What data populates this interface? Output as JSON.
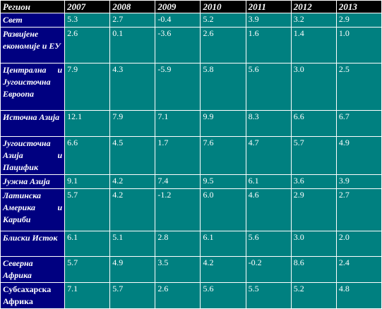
{
  "table": {
    "region_header": "Регион",
    "years": [
      "2007",
      "2008",
      "2009",
      "2010",
      "2011",
      "2012",
      "2013"
    ],
    "rows": [
      {
        "region": "Свет",
        "values": [
          "5.3",
          "2.7",
          "-0.4",
          "5.2",
          "3.9",
          "3.2",
          "2.9"
        ]
      },
      {
        "region": "Развијене економије и ЕУ",
        "values": [
          "2.6",
          "0.1",
          "-3.6",
          "2.6",
          "1.6",
          "1.4",
          "1.0"
        ]
      },
      {
        "region": "Централна и Југоисточна Евроопа",
        "values": [
          "7.9",
          "4.3",
          "-5.9",
          "5.8",
          "5.6",
          "3.0",
          "2.5"
        ]
      },
      {
        "region": "Источна Азија",
        "values": [
          "12.1",
          "7.9",
          "7.1",
          "9.9",
          "8.3",
          "6.6",
          "6.7"
        ]
      },
      {
        "region": "Југоисточна Азија и Пацифик",
        "values": [
          "6.6",
          "4.5",
          "1.7",
          "7.6",
          "4.7",
          "5.7",
          "4.9"
        ]
      },
      {
        "region": "Јужна Азија",
        "values": [
          "9.1",
          "4.2",
          "7.4",
          "9.5",
          "6.1",
          "3.6",
          "3.9"
        ]
      },
      {
        "region": "Латинска Америка и Кариби",
        "values": [
          "5.7",
          "4.2",
          "-1.2",
          "6.0",
          "4.6",
          "2.9",
          "2.7"
        ]
      },
      {
        "region": "Блиски Исток",
        "values": [
          "6.1",
          "5.1",
          "2.8",
          "6.1",
          "5.6",
          "3.0",
          "2.0"
        ]
      },
      {
        "region": "Северна Африка",
        "values": [
          "5.7",
          "4.9",
          "3.5",
          "4.2",
          "-0.2",
          "8.6",
          "2.4"
        ]
      },
      {
        "region": "Субсахарска Африка",
        "values": [
          "7.1",
          "5.7",
          "2.6",
          "5.6",
          "5.5",
          "5.2",
          "4.8"
        ]
      }
    ]
  }
}
